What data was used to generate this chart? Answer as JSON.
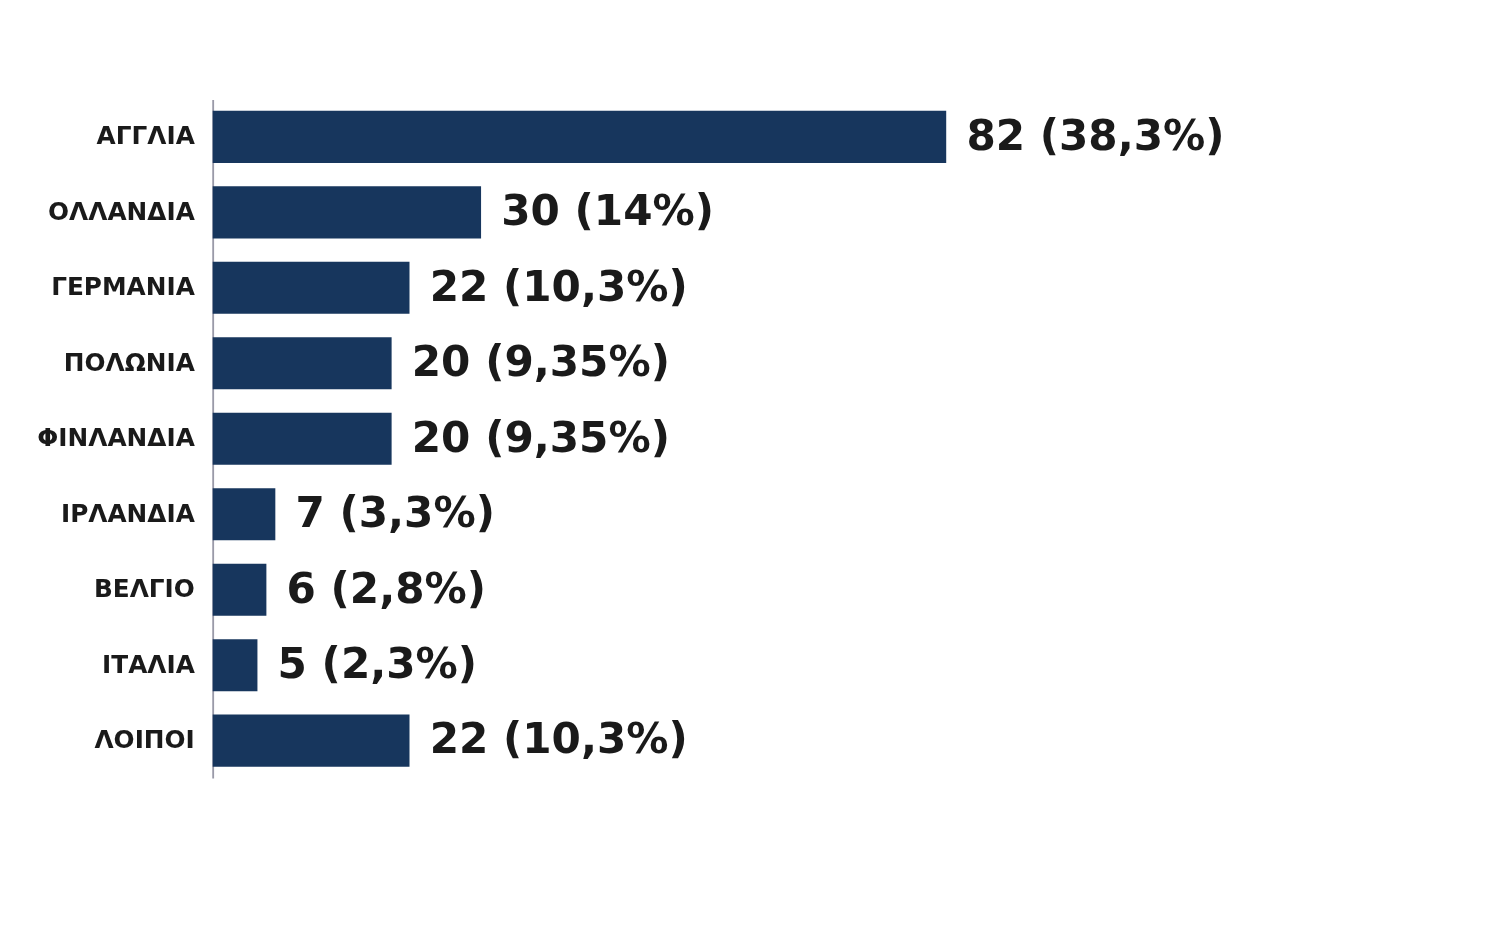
{
  "chart_data": {
    "type": "bar",
    "orientation": "horizontal",
    "categories": [
      "ΑΓΓΛΙΑ",
      "ΟΛΛΑΝΔΙΑ",
      "ΓΕΡΜΑΝΙΑ",
      "ΠΟΛΩΝΙΑ",
      "ΦΙΝΛΑΝΔΙΑ",
      "ΙΡΛΑΝΔΙΑ",
      "ΒΕΛΓΙΟ",
      "ΙΤΑΛΙΑ",
      "ΛΟΙΠΟΙ"
    ],
    "values": [
      82,
      30,
      22,
      20,
      20,
      7,
      6,
      5,
      22
    ],
    "value_labels": [
      "82 (38,3%)",
      "30 (14%)",
      "22 (10,3%)",
      "20 (9,35%)",
      "20 (9,35%)",
      "7 (3,3%)",
      "6 (2,8%)",
      "5 (2,3%)",
      "22 (10,3%)"
    ],
    "color": "#17365d",
    "tick_labels": "y"
  }
}
